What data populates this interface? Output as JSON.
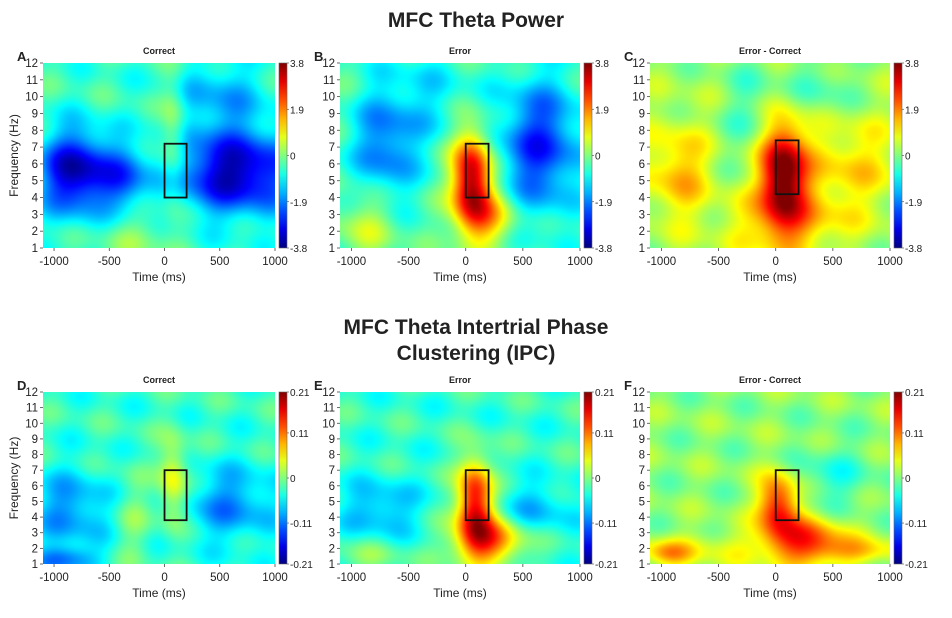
{
  "titles": {
    "power": "MFC Theta Power",
    "ipc_line1": "MFC Theta Intertrial Phase",
    "ipc_line2": "Clustering (IPC)"
  },
  "chart_data": [
    {
      "type": "heatmap",
      "letter": "A",
      "title": "Correct",
      "xlabel": "Time (ms)",
      "ylabel": "Frequency (Hz)",
      "x_ticks": [
        "-1000",
        "-500",
        "0",
        "500",
        "1000"
      ],
      "y_ticks": [
        "1",
        "2",
        "3",
        "4",
        "5",
        "6",
        "7",
        "8",
        "9",
        "10",
        "11",
        "12"
      ],
      "xlim": [
        -1100,
        1000
      ],
      "ylim": [
        1,
        12
      ],
      "colorbar": {
        "min": -3.8,
        "max": 3.8,
        "ticks": [
          "3.8",
          "1.9",
          "0",
          "-1.9",
          "-3.8"
        ]
      },
      "roi": {
        "time": [
          0,
          200
        ],
        "freq": [
          4,
          7.2
        ]
      },
      "base": -0.5,
      "blobs": [
        {
          "t": -800,
          "f": 5.5,
          "st": 230,
          "sf": 1.7,
          "a": -3.0
        },
        {
          "t": 650,
          "f": 5.5,
          "st": 380,
          "sf": 1.7,
          "a": -3.0
        },
        {
          "t": -350,
          "f": 5.0,
          "st": 160,
          "sf": 1.4,
          "a": -1.4
        },
        {
          "t": 80,
          "f": 7.5,
          "st": 80,
          "sf": 2.5,
          "a": 1.1
        },
        {
          "t": 500,
          "f": 10,
          "st": 300,
          "sf": 1.6,
          "a": -1.0
        },
        {
          "t": -250,
          "f": 1.8,
          "st": 250,
          "sf": 1.2,
          "a": 0.6
        }
      ]
    },
    {
      "type": "heatmap",
      "letter": "B",
      "title": "Error",
      "xlabel": "Time (ms)",
      "ylabel": "",
      "x_ticks": [
        "-1000",
        "-500",
        "0",
        "500",
        "1000"
      ],
      "y_ticks": [
        "1",
        "2",
        "3",
        "4",
        "5",
        "6",
        "7",
        "8",
        "9",
        "10",
        "11",
        "12"
      ],
      "xlim": [
        -1100,
        1000
      ],
      "ylim": [
        1,
        12
      ],
      "colorbar": {
        "min": -3.8,
        "max": 3.8,
        "ticks": [
          "3.8",
          "1.9",
          "0",
          "-1.9",
          "-3.8"
        ]
      },
      "roi": {
        "time": [
          0,
          200
        ],
        "freq": [
          4,
          7.2
        ]
      },
      "base": -0.4,
      "blobs": [
        {
          "t": 50,
          "f": 5.2,
          "st": 120,
          "sf": 1.9,
          "a": 4.0
        },
        {
          "t": 180,
          "f": 2.8,
          "st": 190,
          "sf": 1.2,
          "a": 1.8
        },
        {
          "t": -700,
          "f": 7,
          "st": 200,
          "sf": 2.5,
          "a": -1.6
        },
        {
          "t": 650,
          "f": 7,
          "st": 250,
          "sf": 2.8,
          "a": -2.2
        },
        {
          "t": -850,
          "f": 2.5,
          "st": 200,
          "sf": 1.5,
          "a": 1.0
        },
        {
          "t": -300,
          "f": 10,
          "st": 250,
          "sf": 2.0,
          "a": -0.6
        }
      ]
    },
    {
      "type": "heatmap",
      "letter": "C",
      "title": "Error - Correct",
      "xlabel": "Time (ms)",
      "ylabel": "",
      "x_ticks": [
        "-1000",
        "-500",
        "0",
        "500",
        "1000"
      ],
      "y_ticks": [
        "1",
        "2",
        "3",
        "4",
        "5",
        "6",
        "7",
        "8",
        "9",
        "10",
        "11",
        "12"
      ],
      "xlim": [
        -1100,
        1000
      ],
      "ylim": [
        1,
        12
      ],
      "colorbar": {
        "min": -3.8,
        "max": 3.8,
        "ticks": [
          "3.8",
          "1.9",
          "0",
          "-1.9",
          "-3.8"
        ]
      },
      "roi": {
        "time": [
          0,
          200
        ],
        "freq": [
          4.2,
          7.4
        ]
      },
      "base": 0.2,
      "blobs": [
        {
          "t": 60,
          "f": 5.5,
          "st": 140,
          "sf": 2.1,
          "a": 3.9
        },
        {
          "t": 100,
          "f": 2.5,
          "st": 350,
          "sf": 1.4,
          "a": 1.3
        },
        {
          "t": -850,
          "f": 5.5,
          "st": 200,
          "sf": 2.0,
          "a": 1.3
        },
        {
          "t": 650,
          "f": 6,
          "st": 320,
          "sf": 2.0,
          "a": 1.0
        },
        {
          "t": -200,
          "f": 9,
          "st": 180,
          "sf": 2.5,
          "a": -0.6
        },
        {
          "t": 400,
          "f": 10.5,
          "st": 200,
          "sf": 1.5,
          "a": -0.6
        }
      ]
    },
    {
      "type": "heatmap",
      "letter": "D",
      "title": "Correct",
      "xlabel": "Time (ms)",
      "ylabel": "Frequency (Hz)",
      "x_ticks": [
        "-1000",
        "-500",
        "0",
        "500",
        "1000"
      ],
      "y_ticks": [
        "1",
        "2",
        "3",
        "4",
        "5",
        "6",
        "7",
        "8",
        "9",
        "10",
        "11",
        "12"
      ],
      "xlim": [
        -1100,
        1000
      ],
      "ylim": [
        1,
        12
      ],
      "colorbar": {
        "min": -0.21,
        "max": 0.21,
        "ticks": [
          "0.21",
          "0.11",
          "0",
          "-0.11",
          "-0.21"
        ]
      },
      "roi": {
        "time": [
          0,
          200
        ],
        "freq": [
          3.8,
          7
        ]
      },
      "base": -0.03,
      "blobs": [
        {
          "t": -850,
          "f": 4.5,
          "st": 250,
          "sf": 1.7,
          "a": -0.07
        },
        {
          "t": 600,
          "f": 4.8,
          "st": 300,
          "sf": 1.7,
          "a": -0.07
        },
        {
          "t": -900,
          "f": 1.3,
          "st": 200,
          "sf": 0.6,
          "a": -0.08
        },
        {
          "t": 80,
          "f": 6.2,
          "st": 90,
          "sf": 2.0,
          "a": 0.09
        },
        {
          "t": -300,
          "f": 4,
          "st": 120,
          "sf": 2.2,
          "a": 0.03
        }
      ]
    },
    {
      "type": "heatmap",
      "letter": "E",
      "title": "Error",
      "xlabel": "Time (ms)",
      "ylabel": "",
      "x_ticks": [
        "-1000",
        "-500",
        "0",
        "500",
        "1000"
      ],
      "y_ticks": [
        "1",
        "2",
        "3",
        "4",
        "5",
        "6",
        "7",
        "8",
        "9",
        "10",
        "11",
        "12"
      ],
      "xlim": [
        -1100,
        1000
      ],
      "ylim": [
        1,
        12
      ],
      "colorbar": {
        "min": -0.21,
        "max": 0.21,
        "ticks": [
          "0.21",
          "0.11",
          "0",
          "-0.11",
          "-0.21"
        ]
      },
      "roi": {
        "time": [
          0,
          200
        ],
        "freq": [
          3.8,
          7
        ]
      },
      "base": -0.03,
      "blobs": [
        {
          "t": 80,
          "f": 5,
          "st": 110,
          "sf": 1.9,
          "a": 0.2
        },
        {
          "t": 200,
          "f": 2.5,
          "st": 220,
          "sf": 1.1,
          "a": 0.15
        },
        {
          "t": -750,
          "f": 4.5,
          "st": 240,
          "sf": 1.3,
          "a": -0.06
        },
        {
          "t": 600,
          "f": 4.5,
          "st": 250,
          "sf": 1.2,
          "a": -0.05
        },
        {
          "t": -850,
          "f": 1.5,
          "st": 250,
          "sf": 0.8,
          "a": 0.03
        }
      ]
    },
    {
      "type": "heatmap",
      "letter": "F",
      "title": "Error - Correct",
      "xlabel": "Time (ms)",
      "ylabel": "",
      "x_ticks": [
        "-1000",
        "-500",
        "0",
        "500",
        "1000"
      ],
      "y_ticks": [
        "1",
        "2",
        "3",
        "4",
        "5",
        "6",
        "7",
        "8",
        "9",
        "10",
        "11",
        "12"
      ],
      "xlim": [
        -1100,
        1000
      ],
      "ylim": [
        1,
        12
      ],
      "colorbar": {
        "min": -0.21,
        "max": 0.21,
        "ticks": [
          "0.21",
          "0.11",
          "0",
          "-0.11",
          "-0.21"
        ]
      },
      "roi": {
        "time": [
          0,
          200
        ],
        "freq": [
          3.8,
          7
        ]
      },
      "base": 0.005,
      "blobs": [
        {
          "t": 20,
          "f": 4.8,
          "st": 120,
          "sf": 1.4,
          "a": 0.15
        },
        {
          "t": 250,
          "f": 2.5,
          "st": 250,
          "sf": 1.1,
          "a": 0.13
        },
        {
          "t": 750,
          "f": 1.8,
          "st": 300,
          "sf": 0.6,
          "a": 0.06
        },
        {
          "t": -950,
          "f": 1.7,
          "st": 150,
          "sf": 0.6,
          "a": 0.08
        },
        {
          "t": -500,
          "f": 2.0,
          "st": 300,
          "sf": 0.8,
          "a": 0.035
        },
        {
          "t": 500,
          "f": 6.5,
          "st": 250,
          "sf": 1.5,
          "a": -0.04
        }
      ]
    }
  ]
}
